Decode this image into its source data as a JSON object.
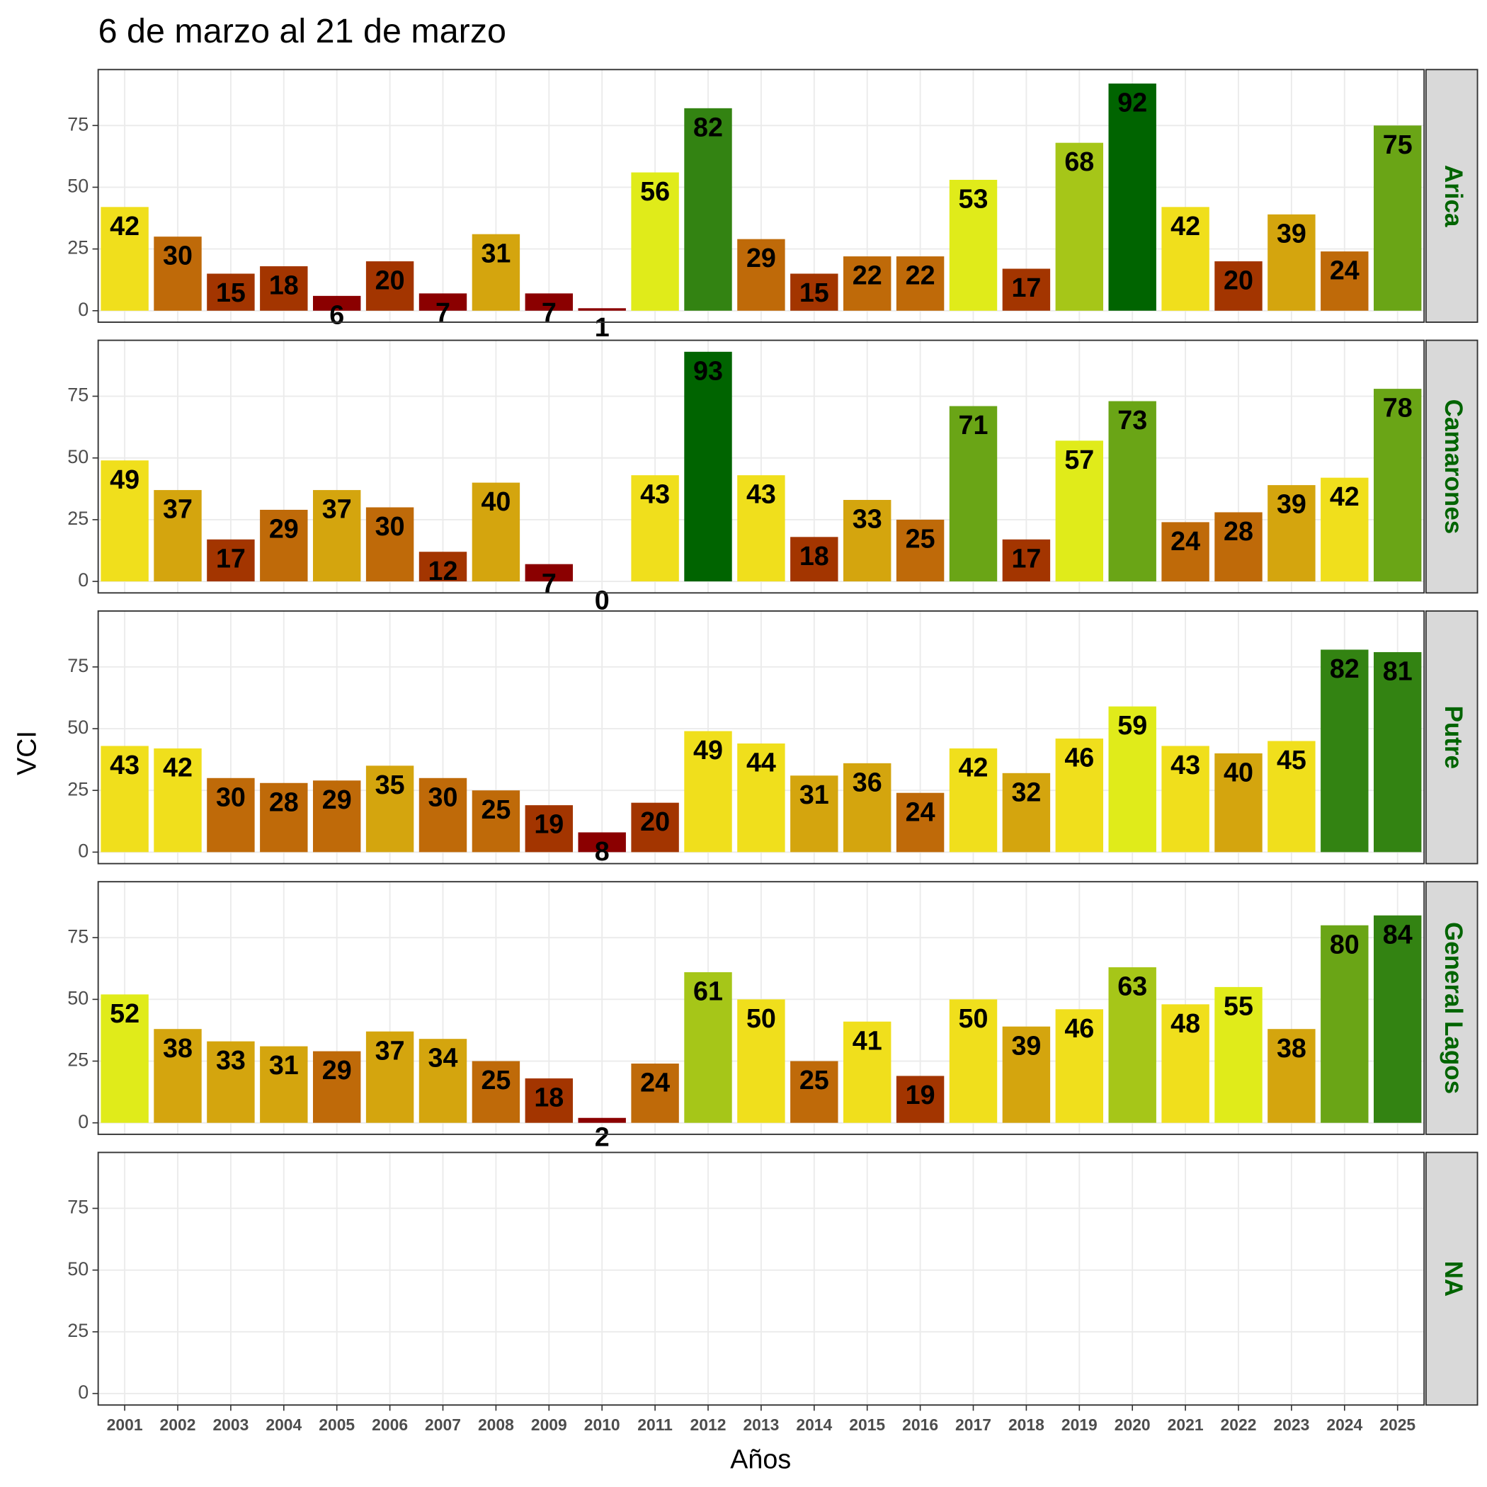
{
  "chart_data": {
    "type": "bar",
    "title": "6 de marzo al 21 de marzo",
    "x_label": "Años",
    "y_label": "VCI",
    "categories": [
      "2001",
      "2002",
      "2003",
      "2004",
      "2005",
      "2006",
      "2007",
      "2008",
      "2009",
      "2010",
      "2011",
      "2012",
      "2013",
      "2014",
      "2015",
      "2016",
      "2017",
      "2018",
      "2019",
      "2020",
      "2021",
      "2022",
      "2023",
      "2024",
      "2025"
    ],
    "ylim": [
      -4.65,
      97.65
    ],
    "yticks": [
      0,
      25,
      50,
      75
    ],
    "grid": true,
    "series": [
      {
        "name": "Arica",
        "values": [
          42,
          30,
          15,
          18,
          6,
          20,
          7,
          31,
          7,
          1,
          56,
          82,
          29,
          15,
          22,
          22,
          53,
          17,
          68,
          92,
          42,
          20,
          39,
          24,
          75
        ],
        "colors": [
          "#F0DF1C",
          "#BF6A09",
          "#A33500",
          "#A33500",
          "#8B0000",
          "#A33500",
          "#8B0000",
          "#D4A50E",
          "#8B0000",
          "#8B0000",
          "#E0EB1A",
          "#338312",
          "#BF6A09",
          "#A33500",
          "#BF6A09",
          "#BF6A09",
          "#E0EB1A",
          "#A33500",
          "#A6C618",
          "#006400",
          "#F0DF1C",
          "#A33500",
          "#D4A50E",
          "#BF6A09",
          "#6AA516"
        ]
      },
      {
        "name": "Camarones",
        "values": [
          49,
          37,
          17,
          29,
          37,
          30,
          12,
          40,
          7,
          0,
          43,
          93,
          43,
          18,
          33,
          25,
          71,
          17,
          57,
          73,
          24,
          28,
          39,
          42,
          78
        ],
        "colors": [
          "#F0DF1C",
          "#D4A50E",
          "#A33500",
          "#BF6A09",
          "#D4A50E",
          "#BF6A09",
          "#A33500",
          "#D4A50E",
          "#8B0000",
          "#8B0000",
          "#F0DF1C",
          "#006400",
          "#F0DF1C",
          "#A33500",
          "#D4A50E",
          "#BF6A09",
          "#6AA516",
          "#A33500",
          "#E0EB1A",
          "#6AA516",
          "#BF6A09",
          "#BF6A09",
          "#D4A50E",
          "#F0DF1C",
          "#6AA516"
        ]
      },
      {
        "name": "Putre",
        "values": [
          43,
          42,
          30,
          28,
          29,
          35,
          30,
          25,
          19,
          8,
          20,
          49,
          44,
          31,
          36,
          24,
          42,
          32,
          46,
          59,
          43,
          40,
          45,
          82,
          81
        ],
        "colors": [
          "#F0DF1C",
          "#F0DF1C",
          "#BF6A09",
          "#BF6A09",
          "#BF6A09",
          "#D4A50E",
          "#BF6A09",
          "#BF6A09",
          "#A33500",
          "#8B0000",
          "#A33500",
          "#F0DF1C",
          "#F0DF1C",
          "#D4A50E",
          "#D4A50E",
          "#BF6A09",
          "#F0DF1C",
          "#D4A50E",
          "#F0DF1C",
          "#E0EB1A",
          "#F0DF1C",
          "#D4A50E",
          "#F0DF1C",
          "#338312",
          "#338312"
        ]
      },
      {
        "name": "General Lagos",
        "values": [
          52,
          38,
          33,
          31,
          29,
          37,
          34,
          25,
          18,
          2,
          24,
          61,
          50,
          25,
          41,
          19,
          50,
          39,
          46,
          63,
          48,
          55,
          38,
          80,
          84
        ],
        "colors": [
          "#E0EB1A",
          "#D4A50E",
          "#D4A50E",
          "#D4A50E",
          "#BF6A09",
          "#D4A50E",
          "#D4A50E",
          "#BF6A09",
          "#A33500",
          "#8B0000",
          "#BF6A09",
          "#A6C618",
          "#F0DF1C",
          "#BF6A09",
          "#F0DF1C",
          "#A33500",
          "#F0DF1C",
          "#D4A50E",
          "#F0DF1C",
          "#A6C618",
          "#F0DF1C",
          "#E0EB1A",
          "#D4A50E",
          "#6AA516",
          "#338312"
        ]
      },
      {
        "name": "NA",
        "values": [
          null,
          null,
          null,
          null,
          null,
          null,
          null,
          null,
          null,
          null,
          null,
          null,
          null,
          null,
          null,
          null,
          null,
          null,
          null,
          null,
          null,
          null,
          null,
          null,
          null
        ],
        "colors": []
      }
    ]
  }
}
